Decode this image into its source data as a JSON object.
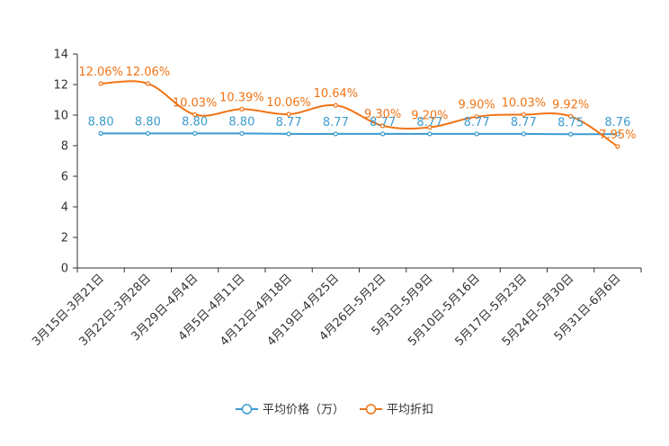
{
  "chart_data": {
    "type": "line",
    "categories": [
      "3月15日-3月21日",
      "3月22日-3月28日",
      "3月29日-4月4日",
      "4月5日-4月11日",
      "4月12日-4月18日",
      "4月19日-4月25日",
      "4月26日-5月2日",
      "5月3日-5月9日",
      "5月10日-5月16日",
      "5月17日-5月23日",
      "5月24日-5月30日",
      "5月31日-6月6日"
    ],
    "ylim": [
      0,
      14
    ],
    "yticks": [
      0,
      2,
      4,
      6,
      8,
      10,
      12,
      14
    ],
    "series": [
      {
        "name": "平均价格（万）",
        "color": "#3c9bd0",
        "values": [
          8.8,
          8.8,
          8.8,
          8.8,
          8.77,
          8.77,
          8.77,
          8.77,
          8.77,
          8.77,
          8.75,
          8.76
        ],
        "labels": [
          "8.80",
          "8.80",
          "8.80",
          "8.80",
          "8.77",
          "8.77",
          "8.77",
          "8.77",
          "8.77",
          "8.77",
          "8.75",
          "8.76"
        ]
      },
      {
        "name": "平均折扣",
        "color": "#f07416",
        "values": [
          12.06,
          12.06,
          10.03,
          10.39,
          10.06,
          10.64,
          9.3,
          9.2,
          9.9,
          10.03,
          9.92,
          7.95
        ],
        "labels": [
          "12.06%",
          "12.06%",
          "10.03%",
          "10.39%",
          "10.06%",
          "10.64%",
          "9.30%",
          "9.20%",
          "9.90%",
          "10.03%",
          "9.92%",
          "7.95%"
        ]
      }
    ],
    "legend": {
      "placement": "bottom-center"
    }
  }
}
